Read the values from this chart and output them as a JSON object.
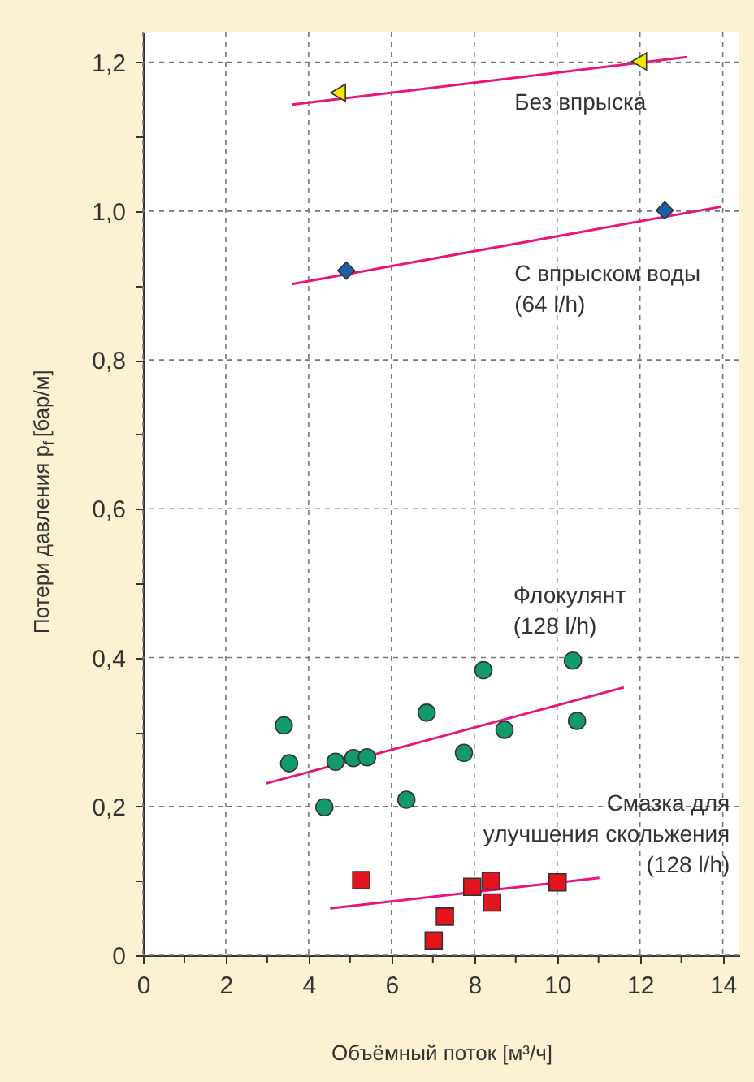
{
  "chart_data": {
    "type": "scatter",
    "xlabel": "Объёмный поток [м³/ч]",
    "ylabel": "Потери давления p$_{f}$ [бар/м]",
    "xlim": [
      0,
      14.4
    ],
    "ylim": [
      0,
      1.24
    ],
    "xticks": [
      0,
      {
        "value": 1,
        "label": null
      },
      2,
      {
        "value": 3,
        "label": null
      },
      4,
      {
        "value": 5,
        "label": null
      },
      6,
      {
        "value": 7,
        "label": null
      },
      8,
      {
        "value": 9,
        "label": null
      },
      10,
      {
        "value": 11,
        "label": null
      },
      12,
      {
        "value": 13,
        "label": null
      },
      14
    ],
    "yticks": [
      0,
      {
        "value": 0.1,
        "label": null
      },
      {
        "value": 0.2,
        "label": "0,2"
      },
      {
        "value": 0.3,
        "label": null
      },
      {
        "value": 0.4,
        "label": "0,4"
      },
      {
        "value": 0.5,
        "label": null
      },
      {
        "value": 0.6,
        "label": "0,6"
      },
      {
        "value": 0.7,
        "label": null
      },
      {
        "value": 0.8,
        "label": "0,8"
      },
      {
        "value": 0.9,
        "label": null
      },
      {
        "value": 1.0,
        "label": "1,0"
      },
      {
        "value": 1.1,
        "label": null
      },
      {
        "value": 1.2,
        "label": "1,2"
      }
    ],
    "grid": true,
    "legend": false,
    "series": [
      {
        "type": "line",
        "color": "#e8147f",
        "x": [
          3.6,
          13.13
        ],
        "values": [
          1.143,
          1.207
        ]
      },
      {
        "type": "line",
        "color": "#e8147f",
        "x": [
          3.6,
          13.97
        ],
        "values": [
          0.902,
          1.006
        ]
      },
      {
        "type": "line",
        "color": "#e8147f",
        "x": [
          2.98,
          11.61
        ],
        "values": [
          0.231,
          0.36
        ]
      },
      {
        "type": "line",
        "color": "#e8147f",
        "x": [
          4.52,
          11.02
        ],
        "values": [
          0.063,
          0.104
        ]
      },
      {
        "name": "Без впрыска",
        "marker": "triangle",
        "color": "#f5e600",
        "x": [
          4.71,
          11.98
        ],
        "values": [
          1.159,
          1.201
        ]
      },
      {
        "name": "С впрыском воды\n(64 l/h)",
        "marker": "diamond",
        "color": "#1a5fa8",
        "x": [
          4.91,
          12.6
        ],
        "values": [
          0.92,
          1.001
        ]
      },
      {
        "name": "Флокулянт\n(128 l/h)",
        "marker": "circle",
        "color": "#129a6a",
        "x": [
          3.4,
          3.53,
          4.38,
          4.65,
          5.08,
          5.41,
          6.36,
          6.85,
          7.75,
          8.22,
          8.73,
          10.38,
          10.48
        ],
        "values": [
          0.309,
          0.258,
          0.199,
          0.26,
          0.265,
          0.266,
          0.209,
          0.326,
          0.272,
          0.383,
          0.303,
          0.396,
          0.315
        ]
      },
      {
        "name": "Смазка для\nулучшения скольжения\n(128 l/h)",
        "marker": "square",
        "color": "#e3141b",
        "x": [
          5.27,
          7.29,
          7.02,
          7.95,
          8.4,
          8.43,
          10.01
        ],
        "values": [
          0.101,
          0.052,
          0.02,
          0.092,
          0.1,
          0.071,
          0.098
        ]
      }
    ]
  }
}
